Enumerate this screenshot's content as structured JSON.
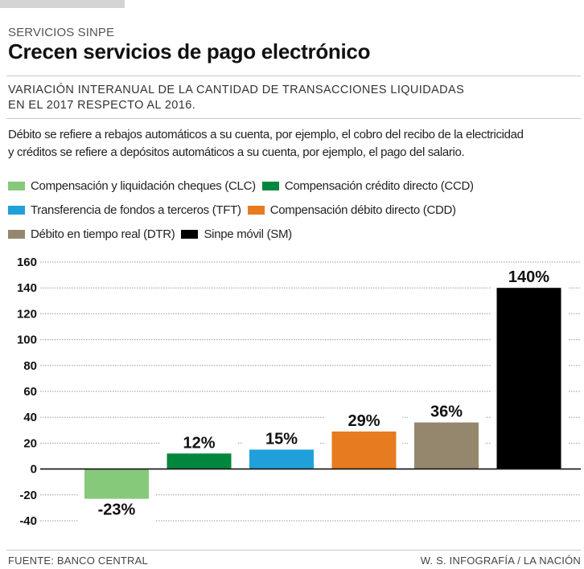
{
  "header": {
    "kicker": "SERVICIOS SINPE",
    "title": "Crecen servicios de pago electrónico",
    "subtitle_line1": "VARIACIÓN INTERANUAL DE LA CANTIDAD DE TRANSACCIONES LIQUIDADAS",
    "subtitle_line2": "EN EL 2017 RESPECTO AL 2016.",
    "note_line1": "Débito se refiere a rebajos automáticos a su cuenta, por ejemplo, el cobro del recibo de la electricidad",
    "note_line2": "y créditos se refiere a depósitos automáticos a su cuenta, por ejemplo, el pago del salario."
  },
  "legend": [
    {
      "label": "Compensación y liquidación cheques (CLC)",
      "color": "#86c97a"
    },
    {
      "label": "Compensación crédito directo (CCD)",
      "color": "#00873e"
    },
    {
      "label": "Transferencia de fondos a terceros (TFT)",
      "color": "#1fa0da"
    },
    {
      "label": "Compensación débito directo (CDD)",
      "color": "#e77b1f"
    },
    {
      "label": "Débito en tiempo real (DTR)",
      "color": "#95876e"
    },
    {
      "label": "Sinpe móvil (SM)",
      "color": "#000000"
    }
  ],
  "footer": {
    "source": "FUENTE: BANCO CENTRAL",
    "credit": "W. S. INFOGRAFÍA / LA NACIÓN"
  },
  "chart_data": {
    "type": "bar",
    "title": "Crecen servicios de pago electrónico",
    "categories": [
      "CLC",
      "CCD",
      "TFT",
      "CDD",
      "DTR",
      "SM"
    ],
    "values": [
      -23,
      12,
      15,
      29,
      36,
      140
    ],
    "data_labels": [
      "-23%",
      "12%",
      "15%",
      "29%",
      "36%",
      "140%"
    ],
    "colors": [
      "#86c97a",
      "#00873e",
      "#1fa0da",
      "#e77b1f",
      "#95876e",
      "#000000"
    ],
    "xlabel": "",
    "ylabel": "",
    "ylim": [
      -40,
      160
    ],
    "yticks": [
      160,
      140,
      120,
      100,
      80,
      60,
      40,
      20,
      0,
      -20,
      -40
    ],
    "grid": true,
    "legend_position": "top"
  }
}
